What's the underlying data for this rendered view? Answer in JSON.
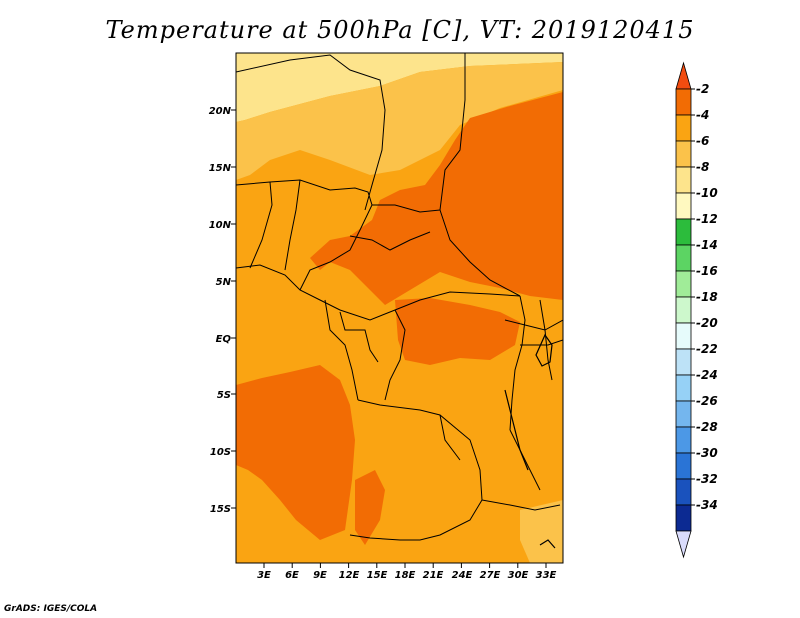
{
  "title": "Temperature at 500hPa [C], VT: 2019120415",
  "credit": "GrADS: IGES/COLA",
  "map": {
    "lat_ticks": [
      "20N",
      "15N",
      "10N",
      "5N",
      "EQ",
      "5S",
      "10S",
      "15S"
    ],
    "lon_ticks": [
      "3E",
      "6E",
      "9E",
      "12E",
      "15E",
      "18E",
      "21E",
      "24E",
      "27E",
      "30E",
      "33E"
    ],
    "region_colors": {
      "warm_core": "#f26c04",
      "mid": "#faa412",
      "light": "#fbc24a",
      "pale": "#fde48c",
      "border": "#000000"
    }
  },
  "colorbar": {
    "labels": [
      "-2",
      "-4",
      "-6",
      "-8",
      "-10",
      "-12",
      "-14",
      "-16",
      "-18",
      "-20",
      "-22",
      "-24",
      "-26",
      "-28",
      "-30",
      "-32",
      "-34"
    ],
    "colors": [
      "#f24c10",
      "#f26c04",
      "#faa412",
      "#fbc24a",
      "#fde48c",
      "#fff9c0",
      "#2cbc3c",
      "#5cd463",
      "#a0ec98",
      "#cdf8cc",
      "#e6fbfb",
      "#bde2f7",
      "#96d1f6",
      "#74b6ee",
      "#4c98e6",
      "#2a74d6",
      "#1a52bd",
      "#0c2a92"
    ],
    "top_cap_color": "#f24c10",
    "bottom_cap_color": "#dadcfc"
  }
}
